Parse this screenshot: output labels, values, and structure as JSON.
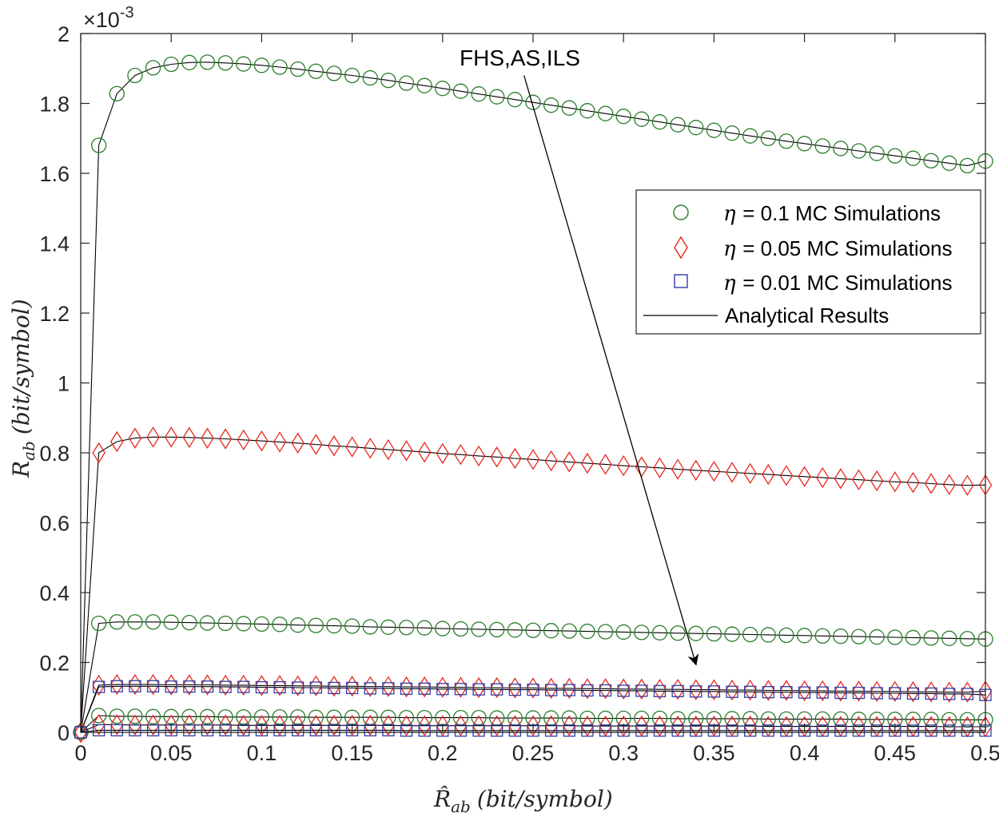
{
  "chart_data": {
    "type": "line",
    "title": "",
    "xlabel": "R̂",
    "xlabel_sub": "ab",
    "xlabel_unit": "(bit/symbol)",
    "ylabel": "R",
    "ylabel_sub": "ab",
    "ylabel_unit": "(bit/symbol)",
    "xlim": [
      0,
      0.5
    ],
    "ylim": [
      0,
      0.002
    ],
    "y_exponent_base": "×10",
    "y_exponent_power": "-3",
    "xticks": [
      0,
      0.05,
      0.1,
      0.15,
      0.2,
      0.25,
      0.3,
      0.35,
      0.4,
      0.45,
      0.5
    ],
    "xtick_labels": [
      "0",
      "0.05",
      "0.1",
      "0.15",
      "0.2",
      "0.25",
      "0.3",
      "0.35",
      "0.4",
      "0.45",
      "0.5"
    ],
    "yticks": [
      0,
      0.0002,
      0.0004,
      0.0006,
      0.0008,
      0.001,
      0.0012,
      0.0014,
      0.0016,
      0.0018,
      0.002
    ],
    "ytick_labels": [
      "0",
      "0.2",
      "0.4",
      "0.6",
      "0.8",
      "1",
      "1.2",
      "1.4",
      "1.6",
      "1.8",
      "2"
    ],
    "grid": false,
    "legend_position": "right-center",
    "legend": [
      {
        "symbol": "η",
        "text": " = 0.1 MC Simulations",
        "marker": "circle",
        "color": "#2a7d2a"
      },
      {
        "symbol": "η",
        "text": " = 0.05 MC Simulations",
        "marker": "diamond",
        "color": "#e8281e"
      },
      {
        "symbol": "η",
        "text": " = 0.01 MC Simulations",
        "marker": "square",
        "color": "#2e3ea8"
      },
      {
        "symbol": "",
        "text": "Analytical Results",
        "marker": "line",
        "color": "#000000"
      }
    ],
    "annotation": {
      "text": "FHS,AS,ILS",
      "from": [
        0.245,
        0.00188
      ],
      "to": [
        0.34,
        0.000195
      ]
    },
    "x_start": 0,
    "x_step": 0.01,
    "series": [
      {
        "name": "η = 0.1 (upper curve)",
        "marker": "circle",
        "color": "#2a7d2a",
        "values": [
          0,
          0.00168,
          0.001828,
          0.00188,
          0.001902,
          0.001912,
          0.001917,
          0.001918,
          0.001916,
          0.001913,
          0.001909,
          0.001904,
          0.001898,
          0.001892,
          0.001886,
          0.00188,
          0.001873,
          0.001866,
          0.001858,
          0.001851,
          0.001843,
          0.001835,
          0.001827,
          0.001819,
          0.001811,
          0.001803,
          0.001795,
          0.001787,
          0.001779,
          0.001771,
          0.001763,
          0.001755,
          0.001747,
          0.001739,
          0.001731,
          0.001723,
          0.001715,
          0.001707,
          0.0017,
          0.001692,
          0.001685,
          0.001678,
          0.001671,
          0.001664,
          0.001657,
          0.00165,
          0.001643,
          0.001636,
          0.001629,
          0.001622,
          0.001635
        ]
      },
      {
        "name": "η = 0.05 (upper curve)",
        "marker": "diamond",
        "color": "#e8281e",
        "values": [
          0,
          0.0008,
          0.000832,
          0.000842,
          0.000845,
          0.000845,
          0.000844,
          0.000842,
          0.00084,
          0.000837,
          0.000834,
          0.000831,
          0.000828,
          0.000824,
          0.00082,
          0.000817,
          0.000813,
          0.000809,
          0.000806,
          0.000802,
          0.000798,
          0.000795,
          0.000791,
          0.000788,
          0.000784,
          0.000781,
          0.000777,
          0.000774,
          0.00077,
          0.000767,
          0.000763,
          0.00076,
          0.000757,
          0.000753,
          0.00075,
          0.000747,
          0.000744,
          0.000741,
          0.000738,
          0.000735,
          0.000732,
          0.000729,
          0.000726,
          0.000723,
          0.00072,
          0.000717,
          0.000715,
          0.000712,
          0.000709,
          0.000707,
          0.000708
        ]
      },
      {
        "name": "η = 0.1 (lower curve)",
        "marker": "circle",
        "color": "#2a7d2a",
        "values": [
          0,
          0.000312,
          0.000316,
          0.000316,
          0.000316,
          0.000315,
          0.000314,
          0.000313,
          0.000312,
          0.000311,
          0.00031,
          0.000309,
          0.000307,
          0.000306,
          0.000305,
          0.000304,
          0.000302,
          0.000301,
          0.0003,
          0.000299,
          0.000297,
          0.000296,
          0.000295,
          0.000294,
          0.000293,
          0.000292,
          0.000291,
          0.00029,
          0.000289,
          0.000288,
          0.000287,
          0.000286,
          0.000285,
          0.000284,
          0.000283,
          0.000282,
          0.000281,
          0.00028,
          0.000279,
          0.000278,
          0.000277,
          0.000276,
          0.000275,
          0.000274,
          0.000273,
          0.000272,
          0.000271,
          0.00027,
          0.000269,
          0.000268,
          0.000267
        ]
      },
      {
        "name": "η = 0.05 (lower curve)",
        "marker": "diamond",
        "color": "#e8281e",
        "values": [
          0,
          0.000135,
          0.000137,
          0.000137,
          0.000137,
          0.000136,
          0.000136,
          0.000136,
          0.000135,
          0.000135,
          0.000134,
          0.000134,
          0.000133,
          0.000133,
          0.000132,
          0.000132,
          0.000131,
          0.000131,
          0.00013,
          0.00013,
          0.000129,
          0.000129,
          0.000128,
          0.000128,
          0.000127,
          0.000127,
          0.000126,
          0.000126,
          0.000125,
          0.000125,
          0.000124,
          0.000124,
          0.000123,
          0.000123,
          0.000122,
          0.000122,
          0.000121,
          0.000121,
          0.00012,
          0.00012,
          0.000119,
          0.000119,
          0.000118,
          0.000118,
          0.000117,
          0.000117,
          0.000116,
          0.000116,
          0.000115,
          0.000115,
          0.000118
        ]
      },
      {
        "name": "η = 0.01 (upper curve)",
        "marker": "square",
        "color": "#2e3ea8",
        "values": [
          0,
          0.00013,
          0.000132,
          0.000132,
          0.000132,
          0.000131,
          0.000131,
          0.000131,
          0.00013,
          0.00013,
          0.000129,
          0.000129,
          0.000128,
          0.000128,
          0.000127,
          0.000127,
          0.000126,
          0.000126,
          0.000125,
          0.000125,
          0.000124,
          0.000124,
          0.000123,
          0.000123,
          0.000122,
          0.000122,
          0.000121,
          0.000121,
          0.00012,
          0.00012,
          0.000119,
          0.000119,
          0.000118,
          0.000118,
          0.000117,
          0.000117,
          0.000116,
          0.000116,
          0.000115,
          0.000115,
          0.000114,
          0.000114,
          0.000113,
          0.000113,
          0.000112,
          0.000112,
          0.000111,
          0.000111,
          0.00011,
          0.00011,
          0.000107
        ]
      },
      {
        "name": "η = 0.1 (bottom curve)",
        "marker": "circle",
        "color": "#2a7d2a",
        "values": [
          0,
          4.8e-05,
          4.6e-05,
          4.6e-05,
          4.5e-05,
          4.5e-05,
          4.5e-05,
          4.5e-05,
          4.4e-05,
          4.4e-05,
          4.4e-05,
          4.4e-05,
          4.4e-05,
          4.3e-05,
          4.3e-05,
          4.3e-05,
          4.3e-05,
          4.3e-05,
          4.2e-05,
          4.2e-05,
          4.2e-05,
          4.2e-05,
          4.2e-05,
          4.1e-05,
          4.1e-05,
          4.1e-05,
          4.1e-05,
          4.1e-05,
          4e-05,
          4e-05,
          4e-05,
          4e-05,
          4e-05,
          3.9e-05,
          3.9e-05,
          3.9e-05,
          3.9e-05,
          3.9e-05,
          3.8e-05,
          3.8e-05,
          3.8e-05,
          3.8e-05,
          3.8e-05,
          3.7e-05,
          3.7e-05,
          3.7e-05,
          3.7e-05,
          3.7e-05,
          3.6e-05,
          3.6e-05,
          3.6e-05
        ]
      },
      {
        "name": "η = 0.05 (bottom curve)",
        "marker": "diamond",
        "color": "#e8281e",
        "values": [
          0,
          2.2e-05,
          2.2e-05,
          2.1e-05,
          2.1e-05,
          2.1e-05,
          2.1e-05,
          2.1e-05,
          2.1e-05,
          2e-05,
          2e-05,
          2e-05,
          2e-05,
          2e-05,
          2e-05,
          2e-05,
          2e-05,
          2e-05,
          1.9e-05,
          1.9e-05,
          1.9e-05,
          1.9e-05,
          1.9e-05,
          1.9e-05,
          1.9e-05,
          1.9e-05,
          1.9e-05,
          1.9e-05,
          1.8e-05,
          1.8e-05,
          1.8e-05,
          1.8e-05,
          1.8e-05,
          1.8e-05,
          1.8e-05,
          1.8e-05,
          1.8e-05,
          1.8e-05,
          1.7e-05,
          1.7e-05,
          1.7e-05,
          1.7e-05,
          1.7e-05,
          1.7e-05,
          1.7e-05,
          1.7e-05,
          1.7e-05,
          1.7e-05,
          1.6e-05,
          1.6e-05,
          1.6e-05
        ]
      },
      {
        "name": "η = 0.01 (bottom curve)",
        "marker": "square",
        "color": "#2e3ea8",
        "values": [
          0,
          6e-06,
          6e-06,
          6e-06,
          6e-06,
          6e-06,
          6e-06,
          6e-06,
          6e-06,
          6e-06,
          6e-06,
          6e-06,
          6e-06,
          6e-06,
          6e-06,
          6e-06,
          6e-06,
          6e-06,
          5e-06,
          5e-06,
          5e-06,
          5e-06,
          5e-06,
          5e-06,
          5e-06,
          5e-06,
          5e-06,
          5e-06,
          5e-06,
          5e-06,
          5e-06,
          5e-06,
          5e-06,
          5e-06,
          5e-06,
          5e-06,
          5e-06,
          5e-06,
          5e-06,
          5e-06,
          5e-06,
          5e-06,
          5e-06,
          5e-06,
          5e-06,
          5e-06,
          5e-06,
          5e-06,
          5e-06,
          5e-06,
          5e-06
        ]
      }
    ]
  }
}
